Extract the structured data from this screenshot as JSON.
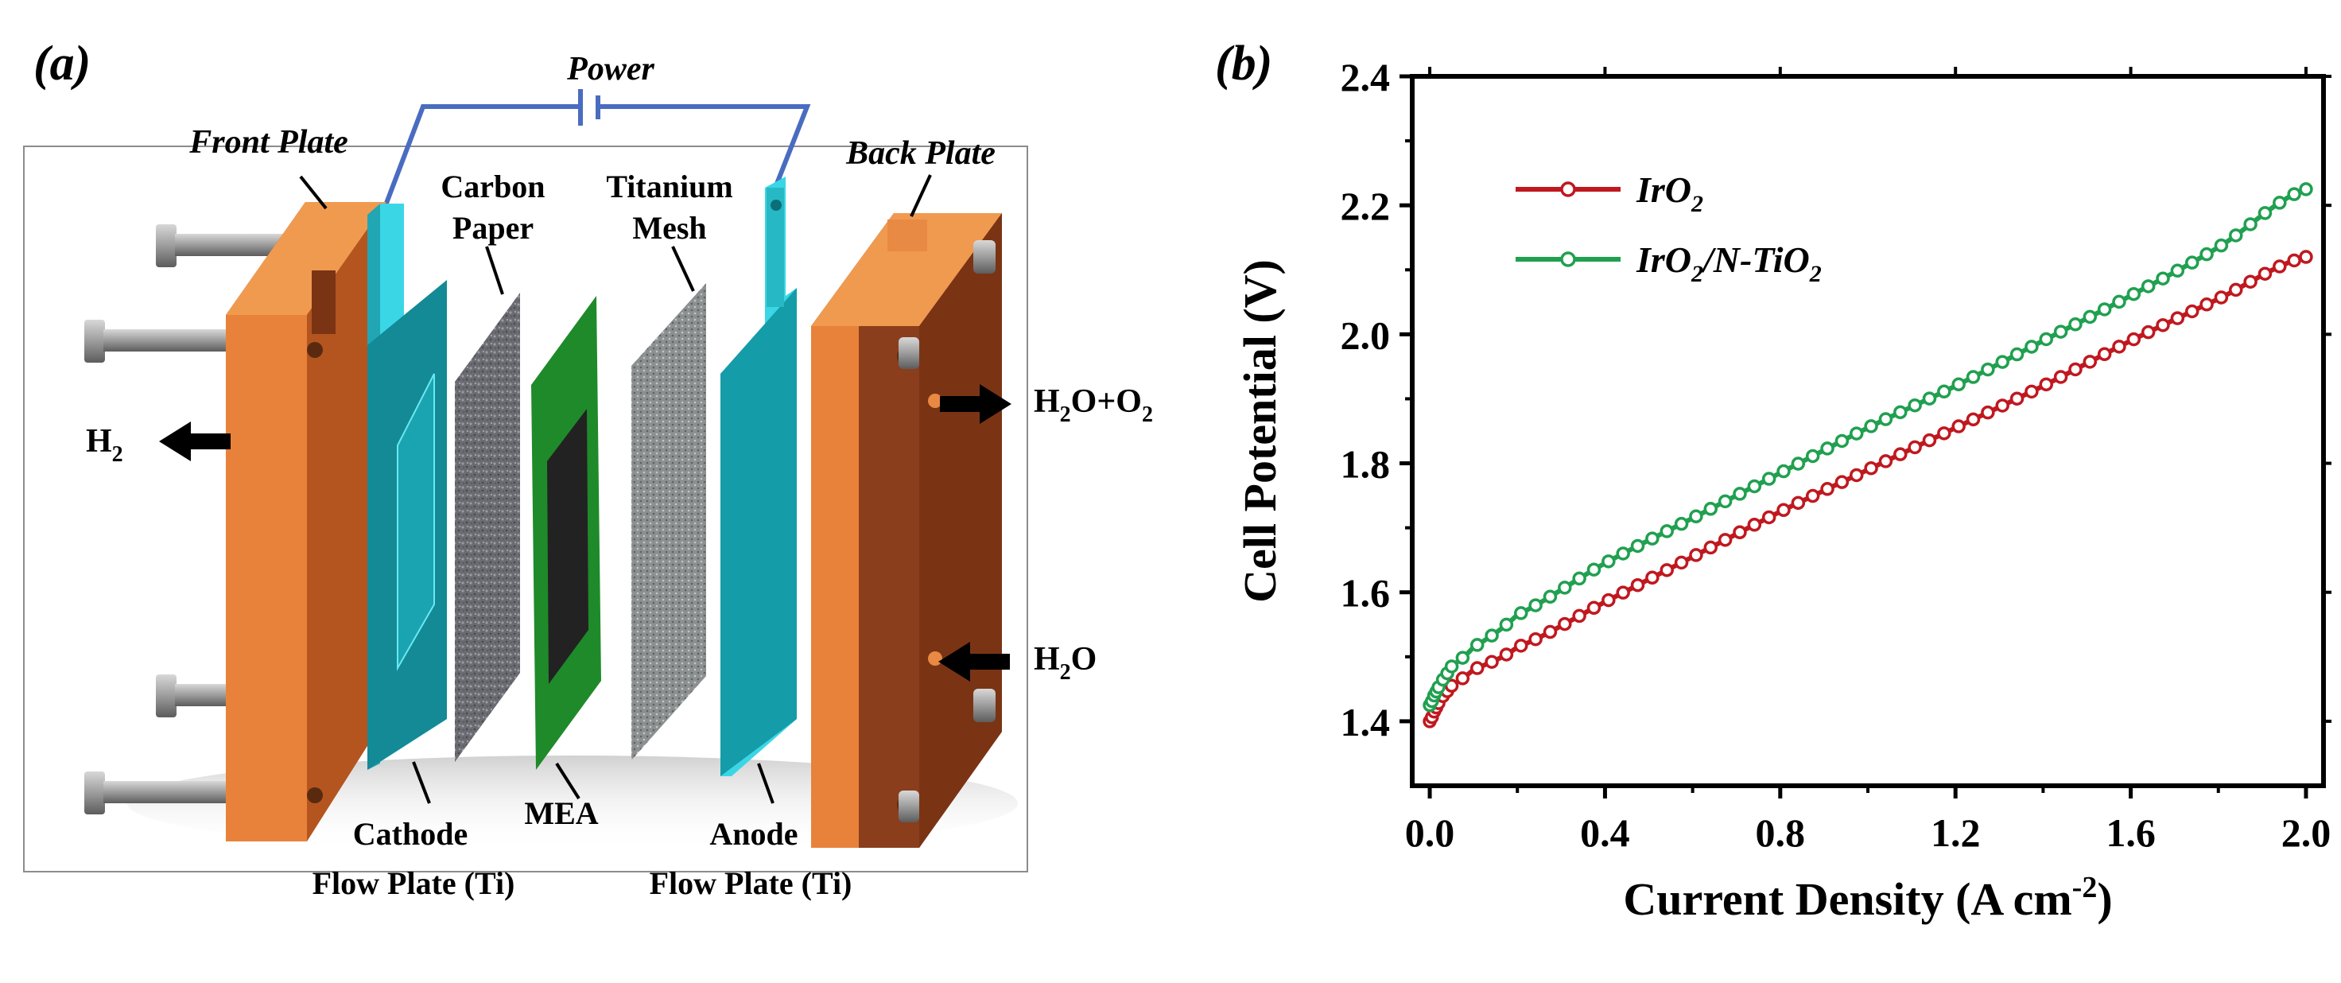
{
  "panel_a": {
    "label": "(a)",
    "power": "Power",
    "front_plate": "Front Plate",
    "back_plate": "Back Plate",
    "carbon_paper": [
      "Carbon",
      "Paper"
    ],
    "titanium_mesh": [
      "Titanium",
      "Mesh"
    ],
    "h2": {
      "base": "H",
      "sub": "2"
    },
    "h2o_o2": {
      "a": "H",
      "sub1": "2",
      "b": "O+O",
      "sub2": "2"
    },
    "h2o": {
      "a": "H",
      "sub": "2",
      "b": "O"
    },
    "cathode": [
      "Cathode",
      "Flow Plate (Ti)"
    ],
    "mea": "MEA",
    "anode": [
      "Anode",
      "Flow Plate (Ti)"
    ],
    "colors": {
      "plate_face": "#e8823a",
      "plate_side": "#8a3e1c",
      "flow_plate": "#3ad6e6",
      "flow_plate_dark": "#138a96",
      "mea_green": "#1f8a2a",
      "wire": "#4a6cc0"
    }
  },
  "panel_b": {
    "label": "(b)"
  },
  "chart_data": {
    "type": "line",
    "title": "",
    "xlabel": "Current Density (A cm",
    "xlabel_sup": "-2",
    "xlabel_end": ")",
    "ylabel": "Cell Potential (V)",
    "xlim": [
      -0.04,
      2.04
    ],
    "ylim": [
      1.3,
      2.4
    ],
    "xticks": [
      0.0,
      0.4,
      0.8,
      1.2,
      1.6,
      2.0
    ],
    "xtick_labels": [
      "0.0",
      "0.4",
      "0.8",
      "1.2",
      "1.6",
      "2.0"
    ],
    "yticks": [
      1.4,
      1.6,
      1.8,
      2.0,
      2.2,
      2.4
    ],
    "ytick_labels": [
      "1.4",
      "1.6",
      "1.8",
      "2.0",
      "2.2",
      "2.4"
    ],
    "legend_position": "top-left",
    "series": [
      {
        "name": "IrO",
        "name_sub": "2",
        "name_tail": "",
        "name_sub2": "",
        "color": "#c0181f",
        "x": [
          0.0,
          0.01,
          0.025,
          0.05,
          0.1,
          0.2,
          0.4,
          0.6,
          0.8,
          1.0,
          1.2,
          1.4,
          1.6,
          1.8,
          2.0
        ],
        "y": [
          1.4,
          1.415,
          1.435,
          1.455,
          1.48,
          1.515,
          1.585,
          1.655,
          1.725,
          1.79,
          1.855,
          1.92,
          1.99,
          2.055,
          2.12
        ]
      },
      {
        "name": "IrO",
        "name_sub": "2",
        "name_tail": "/N-TiO",
        "name_sub2": "2",
        "color": "#20a050",
        "x": [
          0.0,
          0.01,
          0.025,
          0.05,
          0.1,
          0.2,
          0.4,
          0.6,
          0.8,
          1.0,
          1.2,
          1.4,
          1.6,
          1.8,
          2.0
        ],
        "y": [
          1.425,
          1.44,
          1.46,
          1.485,
          1.515,
          1.565,
          1.645,
          1.715,
          1.785,
          1.855,
          1.92,
          1.99,
          2.06,
          2.135,
          2.225
        ]
      }
    ]
  }
}
